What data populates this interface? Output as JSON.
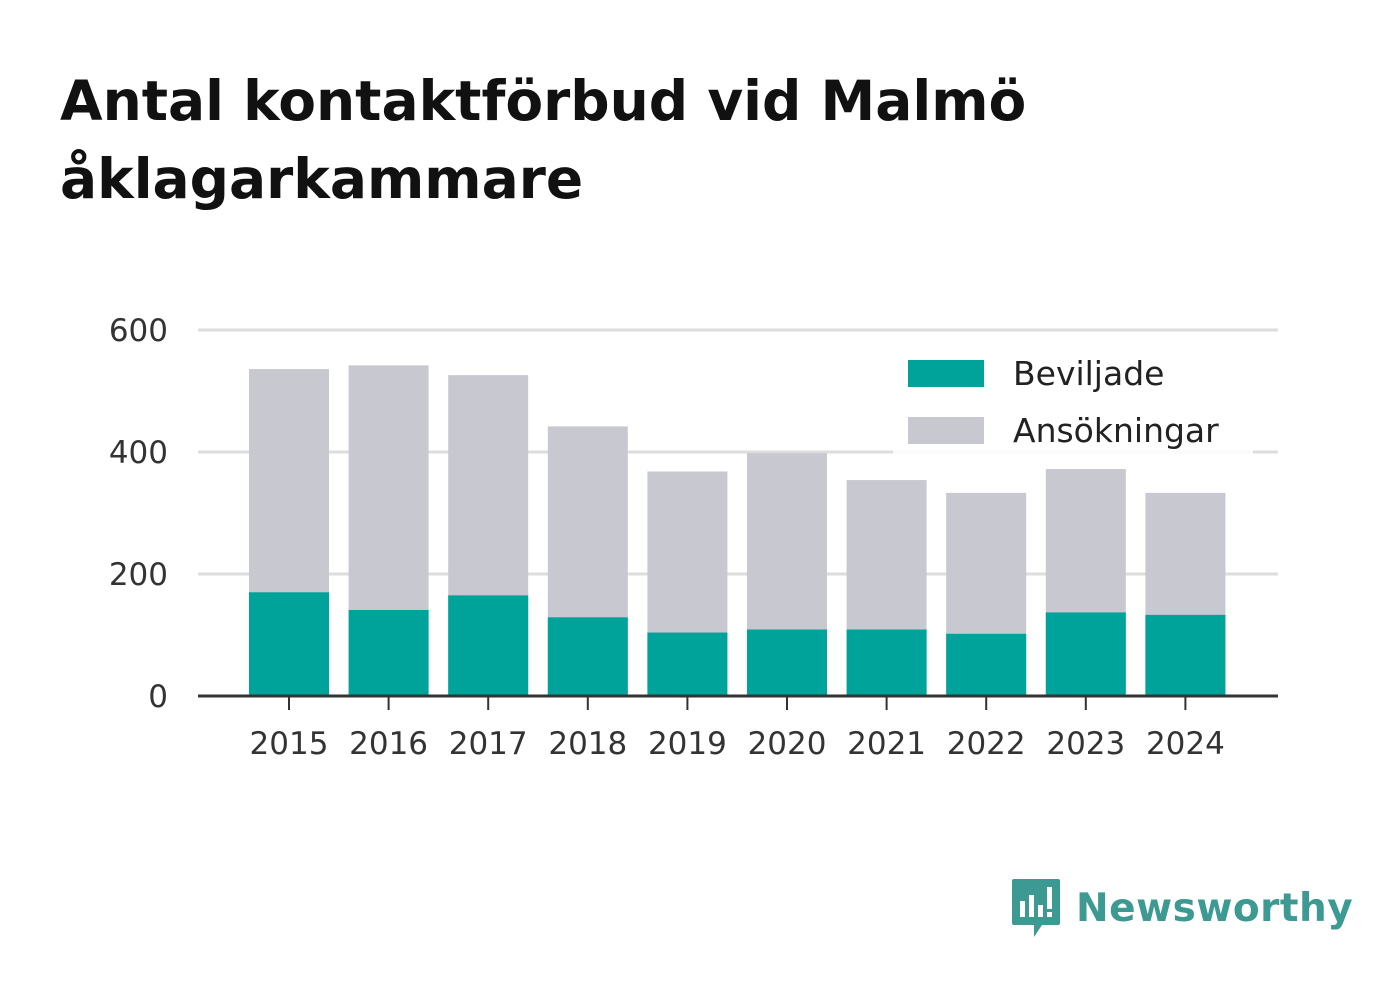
{
  "title": "Antal kontaktförbud vid Malmö åklagarkammare",
  "brand": {
    "name": "Newsworthy",
    "icon": "newsworthy-logo-icon",
    "color": "#3c9a93"
  },
  "colors": {
    "granted": "#00a39a",
    "applications": "#c8c8d0",
    "grid": "#dddddd",
    "axis": "#333333"
  },
  "chart_data": {
    "type": "bar",
    "stacked": false,
    "overlay": true,
    "title": "Antal kontaktförbud vid Malmö åklagarkammare",
    "categories": [
      "2015",
      "2016",
      "2017",
      "2018",
      "2019",
      "2020",
      "2021",
      "2022",
      "2023",
      "2024"
    ],
    "series": [
      {
        "name": "Ansökningar",
        "color": "#c8c8d0",
        "values": [
          536,
          542,
          526,
          442,
          368,
          398,
          354,
          333,
          372,
          333
        ]
      },
      {
        "name": "Beviljade",
        "color": "#00a39a",
        "values": [
          170,
          141,
          165,
          129,
          104,
          109,
          109,
          102,
          137,
          133
        ]
      }
    ],
    "yticks": [
      0,
      200,
      400,
      600
    ],
    "ylim": [
      0,
      600
    ],
    "xlabel": "",
    "ylabel": "",
    "grid": true,
    "legend": {
      "position": "top-right",
      "entries": [
        "Beviljade",
        "Ansökningar"
      ]
    }
  }
}
